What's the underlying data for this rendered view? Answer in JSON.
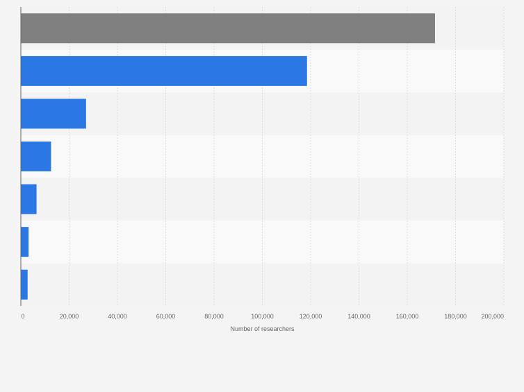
{
  "chart_data": {
    "type": "bar",
    "orientation": "horizontal",
    "title": "",
    "xlabel": "Number of researchers",
    "ylabel": "",
    "categories": [
      "",
      "",
      "",
      "",
      "",
      "",
      ""
    ],
    "values": [
      171500,
      118500,
      27000,
      12500,
      6500,
      3200,
      2800
    ],
    "bar_colors": [
      "#808080",
      "#2b78e4",
      "#2b78e4",
      "#2b78e4",
      "#2b78e4",
      "#2b78e4",
      "#2b78e4"
    ],
    "xlim": [
      0,
      200000
    ],
    "xticks": [
      0,
      20000,
      40000,
      60000,
      80000,
      100000,
      120000,
      140000,
      160000,
      180000,
      200000
    ],
    "xtick_labels": [
      "0",
      "20,000",
      "40,000",
      "60,000",
      "80,000",
      "100,000",
      "120,000",
      "140,000",
      "160,000",
      "180,000",
      "200,000"
    ],
    "grid": true,
    "legend": "none"
  },
  "colors": {
    "background": "#f4f4f4",
    "band_light": "#f9f9f9",
    "band_dark": "#f3f3f3",
    "gridline": "#dcdcdc",
    "axis": "#666666",
    "tick_text": "#666666"
  }
}
